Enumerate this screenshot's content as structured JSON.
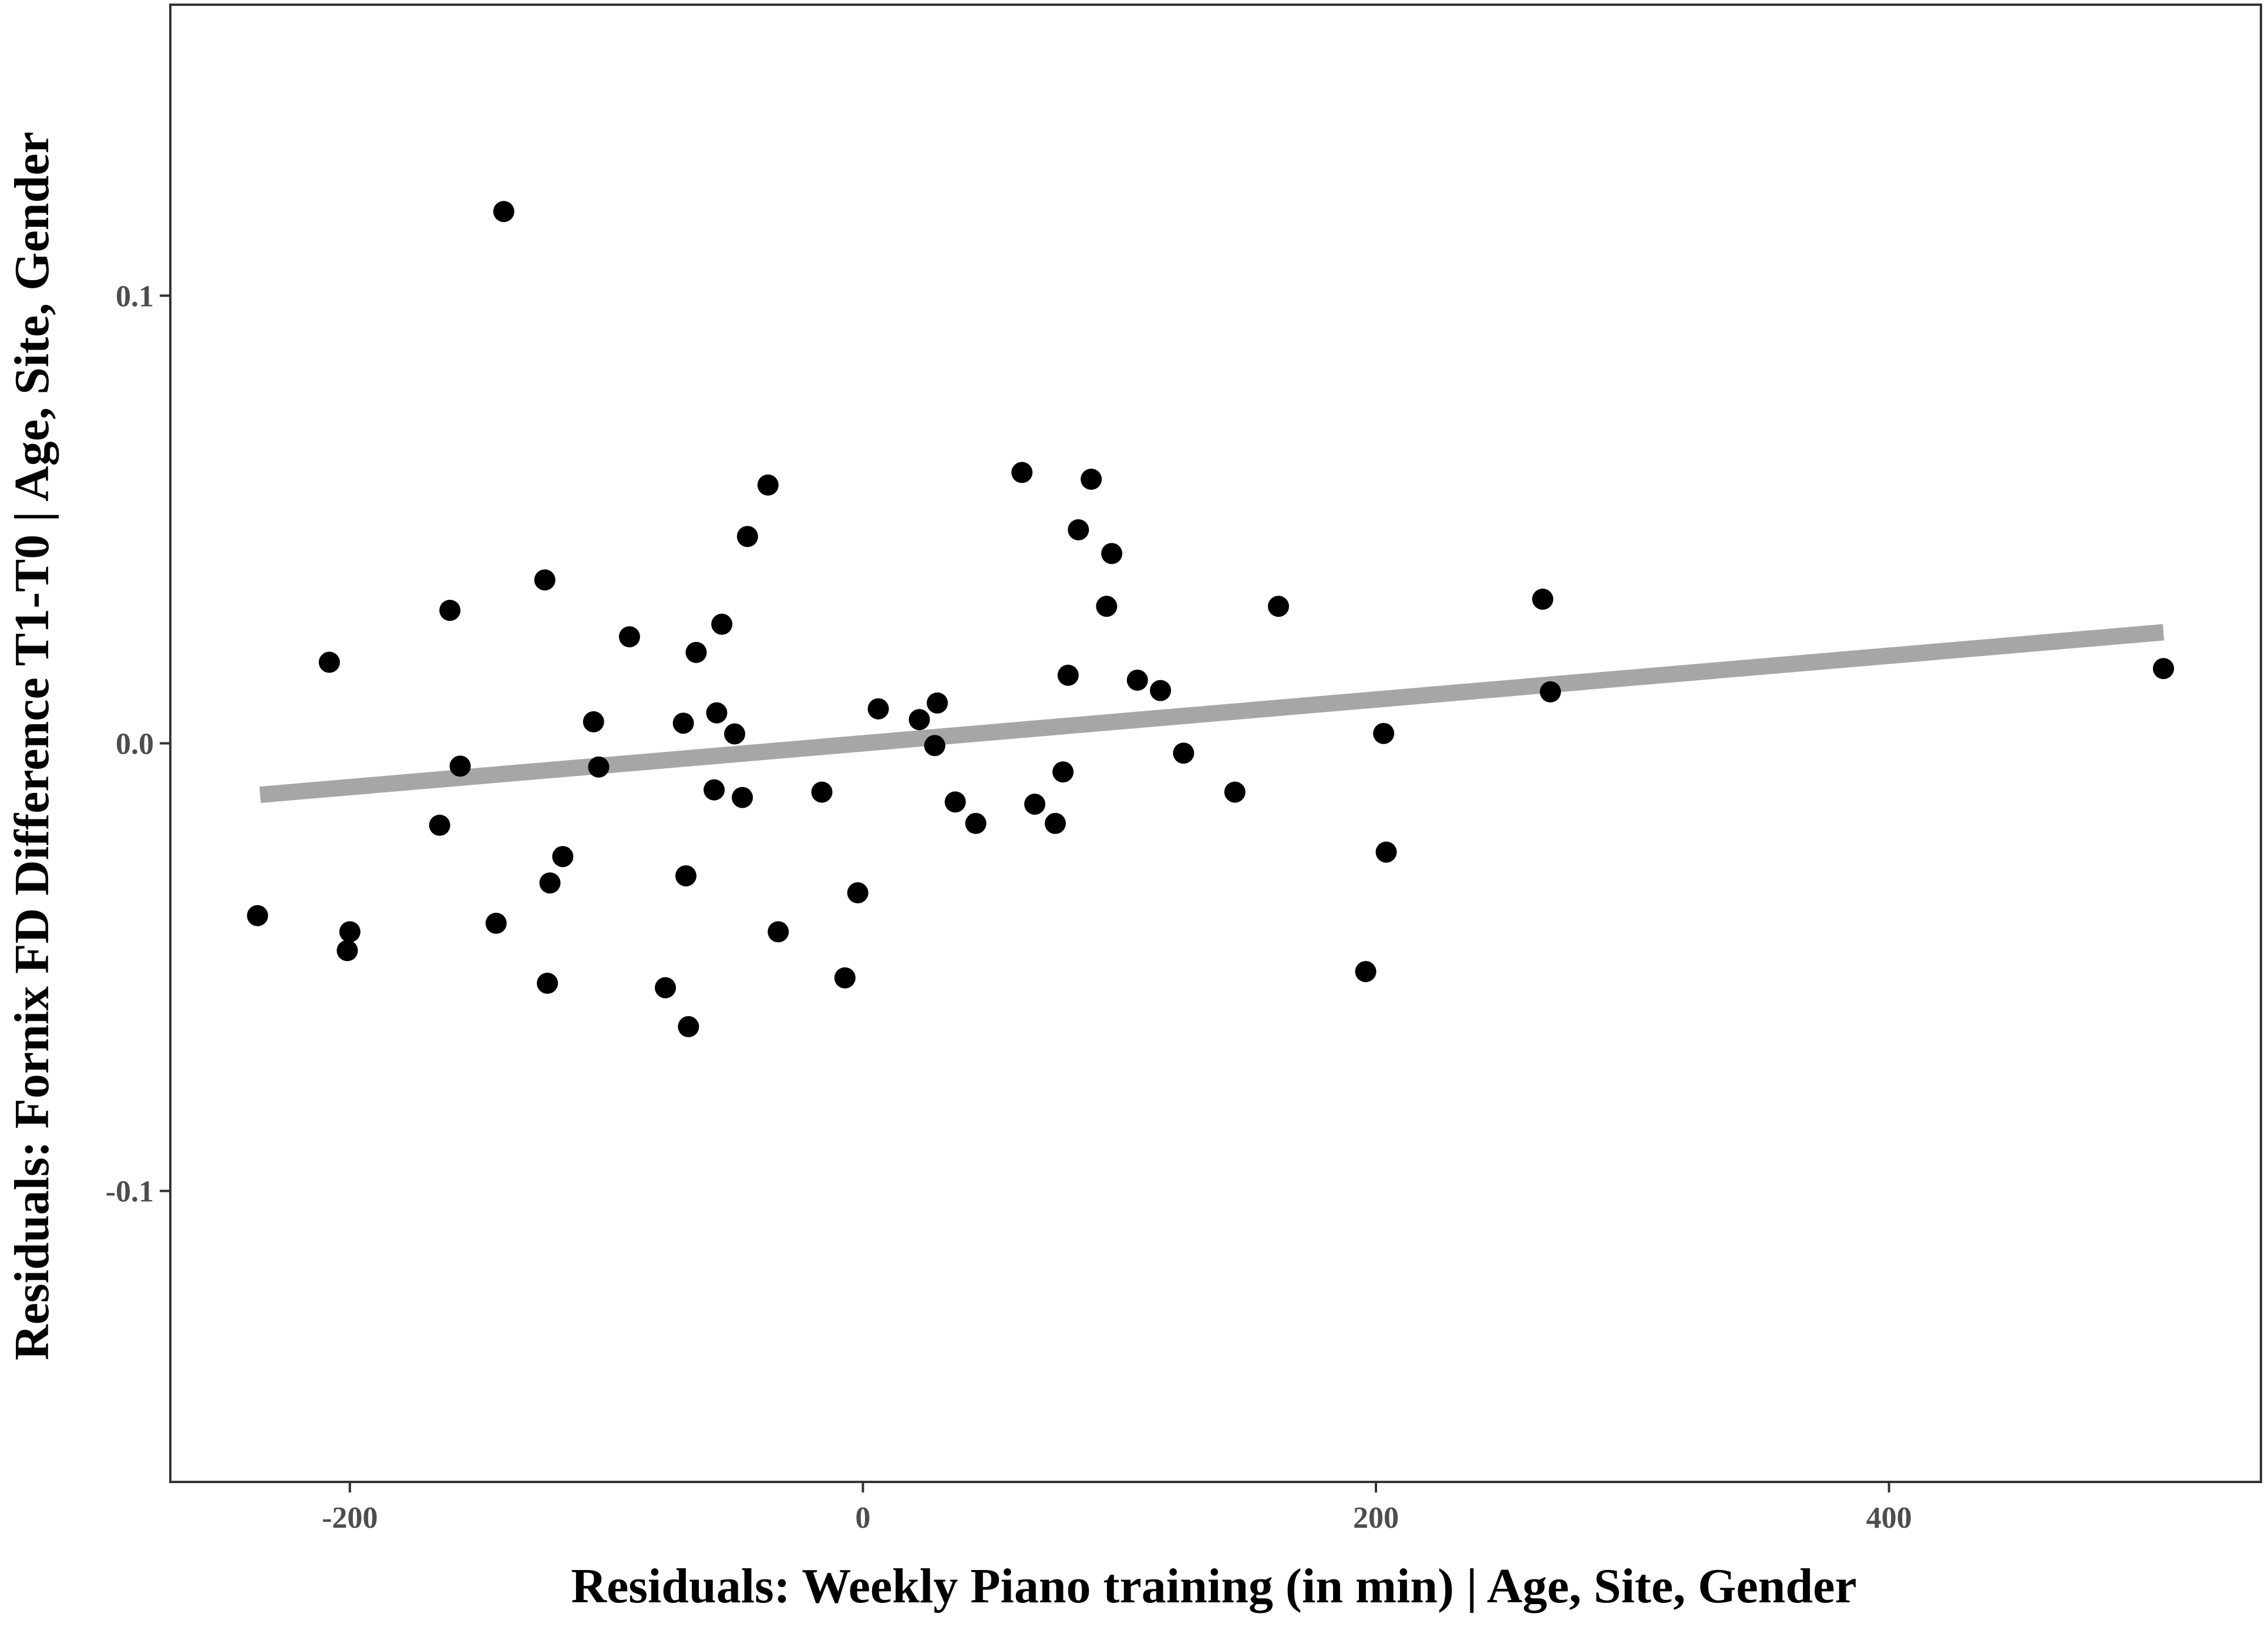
{
  "chart_data": {
    "type": "scatter",
    "title": "",
    "xlabel": "Residuals: Weekly Piano training (in min) | Age, Site, Gender",
    "ylabel": "Residuals: Fornix FD Difference T1-T0 | Age, Site, Gender",
    "xlim": [
      -270,
      545
    ],
    "ylim": [
      -0.165,
      0.165
    ],
    "x_ticks": [
      -200,
      0,
      200,
      400
    ],
    "x_tick_labels": [
      "-200",
      "0",
      "200",
      "400"
    ],
    "y_ticks": [
      -0.1,
      0.0,
      0.1
    ],
    "y_tick_labels": [
      "-0.1",
      "0.0",
      "0.1"
    ],
    "grid": false,
    "legend": "none",
    "colors": {
      "points": "#000000",
      "fit_line": "#a6a6a6",
      "frame": "#333333",
      "background": "#ffffff"
    },
    "fit_line": {
      "x": [
        -235,
        507
      ],
      "y": [
        -0.0115,
        0.0248
      ]
    },
    "points": [
      {
        "x": -236,
        "y": -0.0385
      },
      {
        "x": -208,
        "y": 0.0181
      },
      {
        "x": -200,
        "y": -0.0421
      },
      {
        "x": -201,
        "y": -0.0463
      },
      {
        "x": -165,
        "y": -0.0183
      },
      {
        "x": -161,
        "y": 0.0297
      },
      {
        "x": -157,
        "y": -0.0051
      },
      {
        "x": -143,
        "y": -0.0402
      },
      {
        "x": -140,
        "y": 0.1188
      },
      {
        "x": -124,
        "y": 0.0365
      },
      {
        "x": -122,
        "y": -0.0312
      },
      {
        "x": -123,
        "y": -0.0536
      },
      {
        "x": -117,
        "y": -0.0253
      },
      {
        "x": -105,
        "y": 0.0048
      },
      {
        "x": -103,
        "y": -0.0053
      },
      {
        "x": -91,
        "y": 0.0238
      },
      {
        "x": -77,
        "y": -0.0546
      },
      {
        "x": -70,
        "y": 0.0045
      },
      {
        "x": -69,
        "y": -0.0296
      },
      {
        "x": -68,
        "y": -0.0633
      },
      {
        "x": -65,
        "y": 0.0203
      },
      {
        "x": -58,
        "y": -0.0104
      },
      {
        "x": -57,
        "y": 0.0068
      },
      {
        "x": -55,
        "y": 0.0266
      },
      {
        "x": -50,
        "y": 0.0021
      },
      {
        "x": -47,
        "y": -0.0121
      },
      {
        "x": -45,
        "y": 0.0462
      },
      {
        "x": -37,
        "y": 0.0577
      },
      {
        "x": -33,
        "y": -0.0421
      },
      {
        "x": -16,
        "y": -0.0109
      },
      {
        "x": -7,
        "y": -0.0524
      },
      {
        "x": -2,
        "y": -0.0334
      },
      {
        "x": 6,
        "y": 0.0077
      },
      {
        "x": 22,
        "y": 0.0053
      },
      {
        "x": 28,
        "y": -0.0005
      },
      {
        "x": 29,
        "y": 0.009
      },
      {
        "x": 36,
        "y": -0.0131
      },
      {
        "x": 44,
        "y": -0.0179
      },
      {
        "x": 62,
        "y": 0.0605
      },
      {
        "x": 67,
        "y": -0.0136
      },
      {
        "x": 75,
        "y": -0.0179
      },
      {
        "x": 78,
        "y": -0.0064
      },
      {
        "x": 80,
        "y": 0.0152
      },
      {
        "x": 84,
        "y": 0.0477
      },
      {
        "x": 89,
        "y": 0.059
      },
      {
        "x": 95,
        "y": 0.0306
      },
      {
        "x": 97,
        "y": 0.0424
      },
      {
        "x": 107,
        "y": 0.0141
      },
      {
        "x": 116,
        "y": 0.0118
      },
      {
        "x": 125,
        "y": -0.0022
      },
      {
        "x": 145,
        "y": -0.0109
      },
      {
        "x": 162,
        "y": 0.0306
      },
      {
        "x": 196,
        "y": -0.051
      },
      {
        "x": 203,
        "y": 0.0022
      },
      {
        "x": 204,
        "y": -0.0243
      },
      {
        "x": 265,
        "y": 0.0322
      },
      {
        "x": 268,
        "y": 0.0115
      },
      {
        "x": 507,
        "y": 0.0167
      }
    ]
  }
}
